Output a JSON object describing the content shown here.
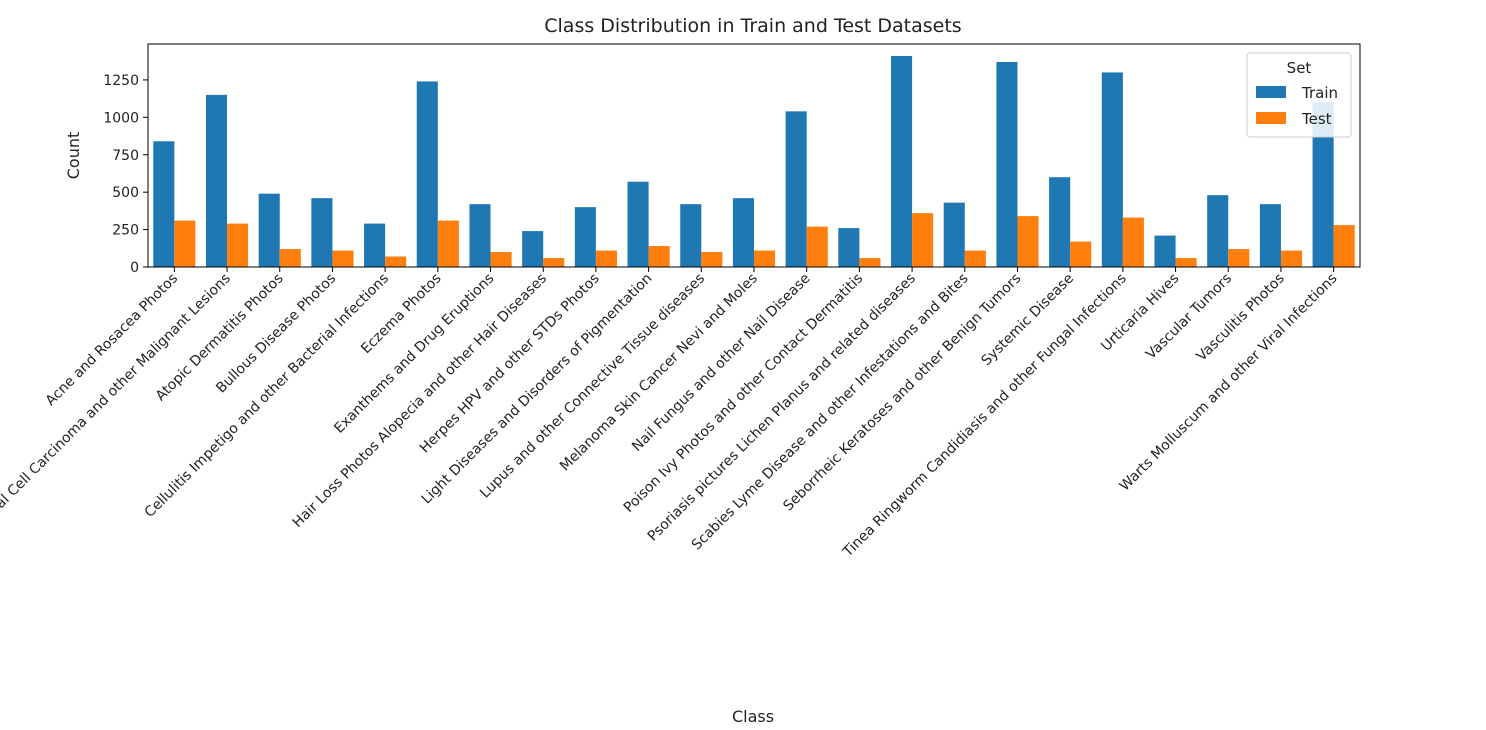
{
  "chart_data": {
    "type": "bar",
    "title": "Class Distribution in Train and Test Datasets",
    "xlabel": "Class",
    "ylabel": "Count",
    "ylim": [
      0,
      1490
    ],
    "yticks": [
      0,
      250,
      500,
      750,
      1000,
      1250
    ],
    "grid": false,
    "legend": {
      "title": "Set",
      "placement": "top-right"
    },
    "categories": [
      "Acne and Rosacea Photos",
      "Actinic Keratosis Basal Cell Carcinoma and other Malignant Lesions",
      "Atopic Dermatitis Photos",
      "Bullous Disease Photos",
      "Cellulitis Impetigo and other Bacterial Infections",
      "Eczema Photos",
      "Exanthems and Drug Eruptions",
      "Hair Loss Photos Alopecia and other Hair Diseases",
      "Herpes HPV and other STDs Photos",
      "Light Diseases and Disorders of Pigmentation",
      "Lupus and other Connective Tissue diseases",
      "Melanoma Skin Cancer Nevi and Moles",
      "Nail Fungus and other Nail Disease",
      "Poison Ivy Photos and other Contact Dermatitis",
      "Psoriasis pictures Lichen Planus and related diseases",
      "Scabies Lyme Disease and other Infestations and Bites",
      "Seborrheic Keratoses and other Benign Tumors",
      "Systemic Disease",
      "Tinea Ringworm Candidiasis and other Fungal Infections",
      "Urticaria Hives",
      "Vascular Tumors",
      "Vasculitis Photos",
      "Warts Molluscum and other Viral Infections"
    ],
    "series": [
      {
        "name": "Train",
        "color": "#1f77b4",
        "values": [
          840,
          1150,
          490,
          460,
          290,
          1240,
          420,
          240,
          400,
          570,
          420,
          460,
          1040,
          260,
          1410,
          430,
          1370,
          600,
          1300,
          210,
          480,
          420,
          1100
        ]
      },
      {
        "name": "Test",
        "color": "#ff7f0e",
        "values": [
          310,
          290,
          120,
          110,
          70,
          310,
          100,
          60,
          110,
          140,
          100,
          110,
          270,
          60,
          360,
          110,
          340,
          170,
          330,
          60,
          120,
          110,
          280
        ]
      }
    ]
  }
}
